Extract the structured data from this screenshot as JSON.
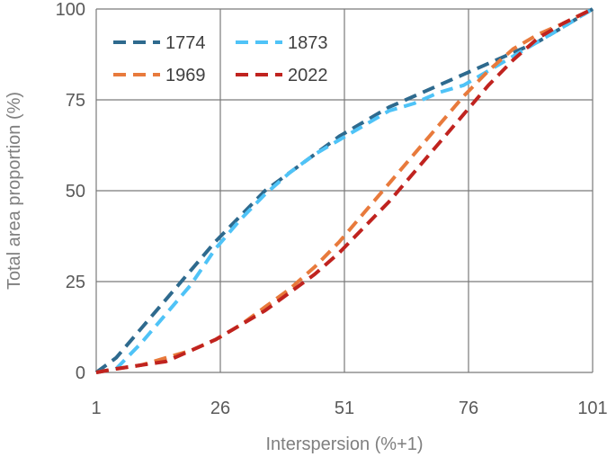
{
  "chart_data": {
    "type": "line",
    "xlabel": "Interspersion (%+1)",
    "ylabel": "Total area proportion (%)",
    "xlim": [
      1,
      101
    ],
    "ylim": [
      0,
      100
    ],
    "xticks": [
      1,
      26,
      51,
      76,
      101
    ],
    "yticks": [
      0,
      25,
      50,
      75,
      100
    ],
    "grid": true,
    "legend_position": "top-left",
    "x": [
      1,
      5,
      10,
      15,
      20,
      25,
      30,
      35,
      40,
      45,
      50,
      55,
      60,
      65,
      70,
      75,
      80,
      85,
      90,
      95,
      101
    ],
    "series": [
      {
        "name": "1774",
        "color": "#2e6a8e",
        "values": [
          0,
          4,
          12,
          20,
          28,
          36,
          43,
          50,
          55,
          60,
          65,
          69,
          73,
          76,
          79,
          82,
          85,
          88,
          91,
          95,
          100
        ]
      },
      {
        "name": "1873",
        "color": "#4fc3f7",
        "values": [
          0,
          1,
          8,
          16,
          24,
          34,
          42,
          49,
          55,
          60,
          64,
          68,
          72,
          74,
          77,
          79,
          83,
          87,
          91,
          95,
          100
        ]
      },
      {
        "name": "1969",
        "color": "#e87a3c",
        "values": [
          0,
          1,
          2,
          4,
          6,
          9,
          13,
          18,
          23,
          29,
          36,
          44,
          52,
          60,
          68,
          76,
          83,
          89,
          93,
          96,
          100
        ]
      },
      {
        "name": "2022",
        "color": "#c0231f",
        "values": [
          0,
          1,
          2,
          3,
          6,
          9,
          13,
          17,
          22,
          27,
          33,
          40,
          47,
          55,
          63,
          71,
          79,
          86,
          92,
          96,
          100
        ]
      }
    ]
  }
}
